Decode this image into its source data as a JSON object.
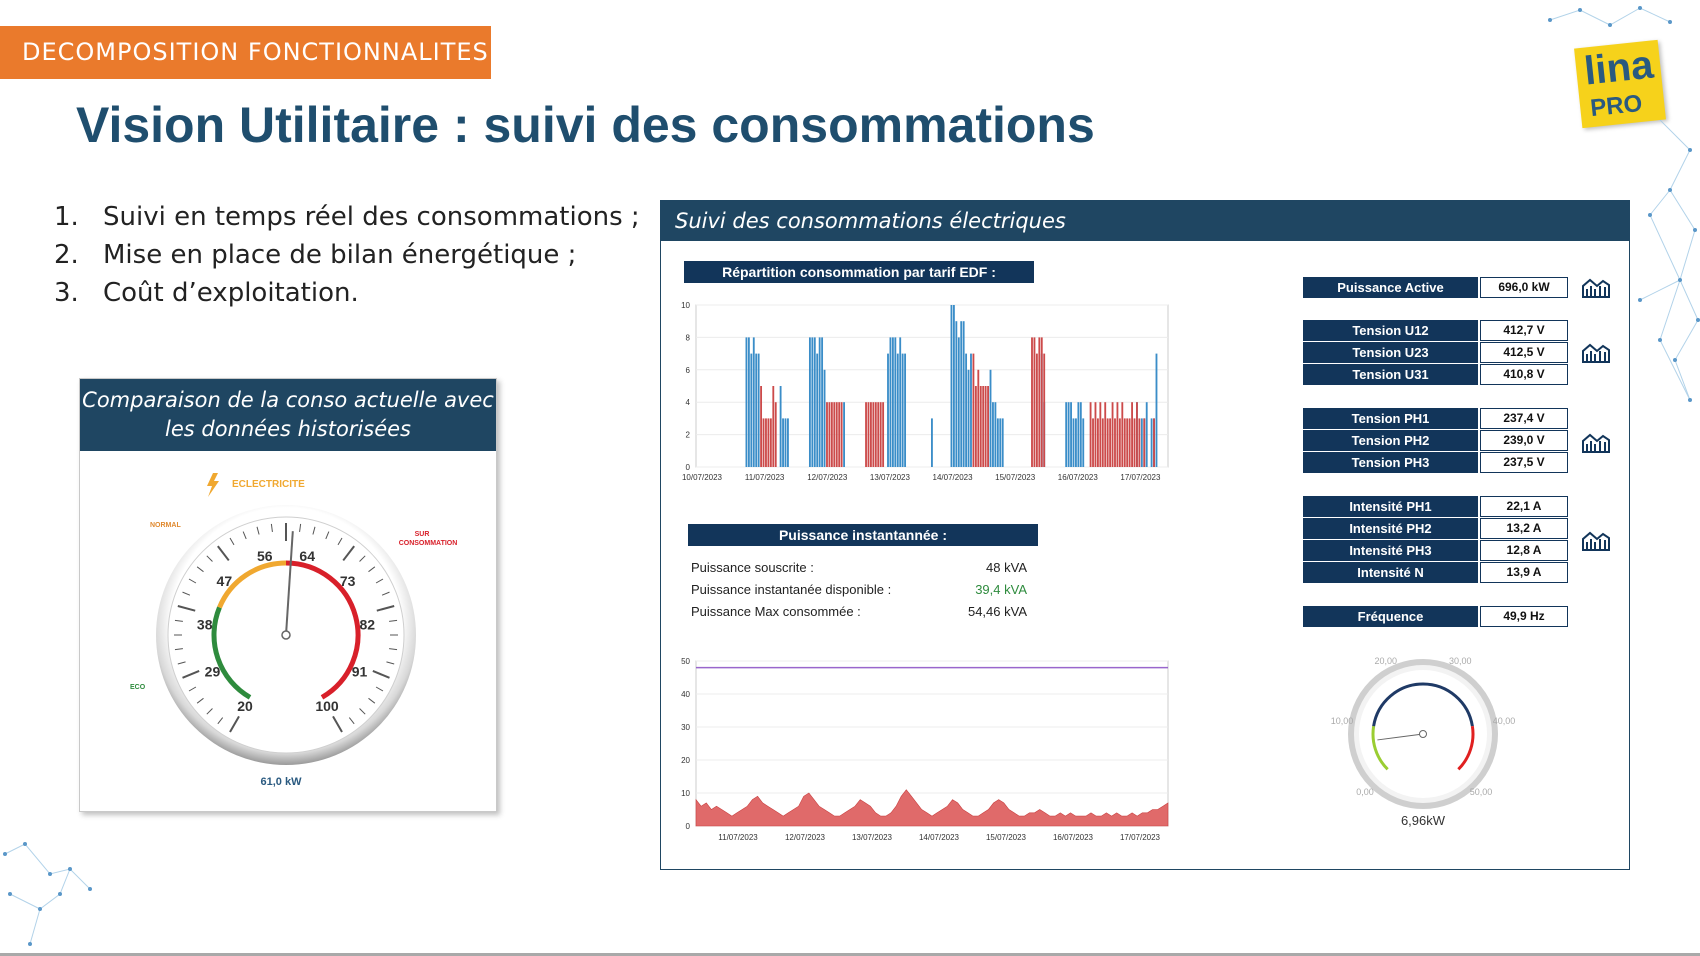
{
  "header": {
    "section_tag": "DECOMPOSITION FONCTIONNALITES",
    "title": "Vision Utilitaire : suivi des consommations",
    "logo_top": "lina",
    "logo_bottom": "PRO"
  },
  "features": [
    {
      "num": "1.",
      "text": "Suivi en temps réel des consommations ;"
    },
    {
      "num": "2.",
      "text": "Mise en place de bilan énergétique ;"
    },
    {
      "num": "3.",
      "text": "Coût d’exploitation."
    }
  ],
  "left_panel": {
    "title_line1": "Comparaison de la conso actuelle avec",
    "title_line2": "les données historisées",
    "gauge": {
      "label": "ECLECTRICITE",
      "zone_normal": "NORMAL",
      "zone_eco": "ECO",
      "zone_sur_line1": "SUR",
      "zone_sur_line2": "CONSOMMATION",
      "ticks": [
        "20",
        "29",
        "38",
        "47",
        "56",
        "64",
        "73",
        "82",
        "91",
        "100"
      ],
      "min": 20,
      "max": 100,
      "value": 61.0,
      "readout": "61,0 kW",
      "colors": {
        "eco": "#2e8b3d",
        "normal": "#f0a830",
        "sur": "#d8202a"
      }
    }
  },
  "right_panel": {
    "title": "Suivi des consommations électriques",
    "repartition_title": "Répartition consommation par tarif EDF :",
    "instant_title": "Puissance instantannée :",
    "instant_rows": [
      {
        "label": "Puissance souscrite :",
        "value": "48 kVA",
        "color": "#222222"
      },
      {
        "label": "Puissance instantanée disponible :",
        "value": "39,4 kVA",
        "color": "#2e8b3d"
      },
      {
        "label": "Puissance Max consommée :",
        "value": "54,46 kVA",
        "color": "#222222"
      }
    ],
    "measures": [
      {
        "label": "Puissance Active",
        "value": "696,0 kW"
      },
      {
        "label": "Tension U12",
        "value": "412,7 V"
      },
      {
        "label": "Tension U23",
        "value": "412,5 V"
      },
      {
        "label": "Tension U31",
        "value": "410,8 V"
      },
      {
        "label": "Tension PH1",
        "value": "237,4 V"
      },
      {
        "label": "Tension PH2",
        "value": "239,0 V"
      },
      {
        "label": "Tension PH3",
        "value": "237,5 V"
      },
      {
        "label": "Intensité PH1",
        "value": "22,1 A"
      },
      {
        "label": "Intensité PH2",
        "value": "13,2 A"
      },
      {
        "label": "Intensité PH3",
        "value": "12,8 A"
      },
      {
        "label": "Intensité N",
        "value": "13,9 A"
      },
      {
        "label": "Fréquence",
        "value": "49,9 Hz"
      }
    ],
    "small_gauge": {
      "ticks": [
        "0,00",
        "10,00",
        "20,00",
        "30,00",
        "40,00",
        "50,00"
      ],
      "min": 0,
      "max": 50,
      "value": 6.96,
      "readout": "6,96kW"
    }
  },
  "chart_data": [
    {
      "type": "bar",
      "title": "Répartition consommation par tarif EDF :",
      "ylim": [
        0,
        10
      ],
      "y_ticks": [
        "0",
        "2",
        "4",
        "6",
        "8",
        "10"
      ],
      "x_tick_labels": [
        "10/07/2023",
        "11/07/2023",
        "12/07/2023",
        "13/07/2023",
        "14/07/2023",
        "15/07/2023",
        "16/07/2023",
        "17/07/2023"
      ],
      "series": [
        {
          "color": "#3a8dc8",
          "values": [
            0,
            0,
            0,
            0,
            0,
            0,
            0,
            0,
            8,
            8,
            7,
            8,
            7,
            7,
            0,
            0,
            0,
            0,
            0,
            0,
            0,
            0,
            5,
            3,
            3,
            3,
            0,
            0,
            0,
            0,
            0,
            0,
            0,
            0,
            8,
            8,
            8,
            7,
            8,
            8,
            6,
            0,
            0,
            0,
            0,
            0,
            0,
            0,
            4,
            0,
            0,
            0,
            0,
            0,
            0,
            0,
            0,
            0,
            0,
            0,
            0,
            0,
            0,
            0,
            0,
            0,
            7,
            8,
            8,
            8,
            7,
            8,
            7,
            7,
            0,
            0,
            0,
            0,
            0,
            0,
            0,
            0,
            0,
            0,
            3,
            0,
            0,
            0,
            0,
            0,
            0,
            0,
            10,
            10,
            9,
            8,
            9,
            9,
            7,
            6,
            7,
            0,
            0,
            0,
            0,
            0,
            0,
            0,
            6,
            4,
            4,
            3,
            3,
            3,
            0,
            0,
            0,
            0,
            0,
            0,
            0,
            0,
            0,
            0,
            0,
            0,
            0,
            0,
            0,
            7,
            4,
            0,
            0,
            0,
            0,
            0,
            0,
            0,
            0,
            4,
            4,
            4,
            3,
            3,
            4,
            4,
            3,
            0,
            0,
            0,
            0,
            0,
            0,
            0,
            0,
            0,
            0,
            0,
            0,
            0,
            0,
            0,
            0,
            0,
            0,
            0,
            0,
            0,
            4,
            0,
            3,
            3,
            4,
            0,
            3,
            3,
            7
          ]
        },
        {
          "color": "#cc4a4a",
          "values": [
            0,
            0,
            0,
            0,
            0,
            0,
            0,
            0,
            0,
            0,
            0,
            0,
            0,
            0,
            5,
            3,
            3,
            3,
            3,
            5,
            4,
            0,
            0,
            0,
            0,
            0,
            0,
            0,
            0,
            0,
            0,
            0,
            0,
            0,
            0,
            0,
            0,
            0,
            0,
            0,
            0,
            4,
            4,
            4,
            4,
            4,
            4,
            4,
            0,
            0,
            0,
            0,
            0,
            0,
            0,
            0,
            0,
            4,
            4,
            4,
            4,
            4,
            4,
            4,
            4,
            0,
            0,
            0,
            0,
            0,
            0,
            0,
            0,
            0,
            0,
            0,
            0,
            0,
            0,
            0,
            0,
            0,
            0,
            0,
            0,
            0,
            0,
            0,
            0,
            0,
            0,
            0,
            0,
            0,
            0,
            0,
            0,
            0,
            0,
            0,
            0,
            7,
            5,
            6,
            5,
            5,
            5,
            5,
            0,
            0,
            0,
            0,
            0,
            0,
            0,
            0,
            0,
            0,
            0,
            0,
            0,
            0,
            0,
            0,
            0,
            8,
            8,
            7,
            8,
            8,
            7,
            0,
            0,
            0,
            0,
            0,
            0,
            0,
            0,
            0,
            0,
            0,
            0,
            0,
            0,
            0,
            0,
            0,
            0,
            4,
            3,
            4,
            3,
            4,
            3,
            4,
            3,
            3,
            4,
            3,
            4,
            3,
            4,
            3,
            3,
            3,
            4,
            3,
            4,
            3,
            0,
            3,
            0,
            0,
            0,
            3,
            0,
            0,
            0
          ]
        }
      ]
    },
    {
      "type": "area",
      "title": "Puissance instantannée :",
      "ylim": [
        0,
        50
      ],
      "y_ticks": [
        "0",
        "10",
        "20",
        "30",
        "40",
        "50"
      ],
      "x_tick_labels": [
        "11/07/2023",
        "12/07/2023",
        "13/07/2023",
        "14/07/2023",
        "15/07/2023",
        "16/07/2023",
        "17/07/2023"
      ],
      "threshold_line": {
        "value": 48,
        "color": "#9966cc"
      },
      "series": [
        {
          "color": "#e06a6a",
          "values": [
            8,
            6,
            7,
            5,
            6,
            5,
            4,
            3,
            4,
            5,
            6,
            8,
            9,
            7,
            6,
            5,
            4,
            3,
            4,
            5,
            6,
            9,
            10,
            8,
            6,
            5,
            4,
            3,
            3,
            4,
            5,
            6,
            8,
            7,
            6,
            4,
            3,
            3,
            4,
            6,
            9,
            11,
            9,
            7,
            5,
            4,
            3,
            4,
            5,
            6,
            8,
            7,
            5,
            4,
            3,
            3,
            4,
            5,
            7,
            8,
            7,
            5,
            4,
            3,
            3,
            4,
            4,
            5,
            4,
            3,
            3,
            4,
            3,
            4,
            3,
            3,
            3,
            4,
            3,
            3,
            4,
            3,
            4,
            3,
            3,
            4,
            3,
            4,
            4,
            5,
            5,
            6,
            7
          ]
        }
      ]
    }
  ]
}
